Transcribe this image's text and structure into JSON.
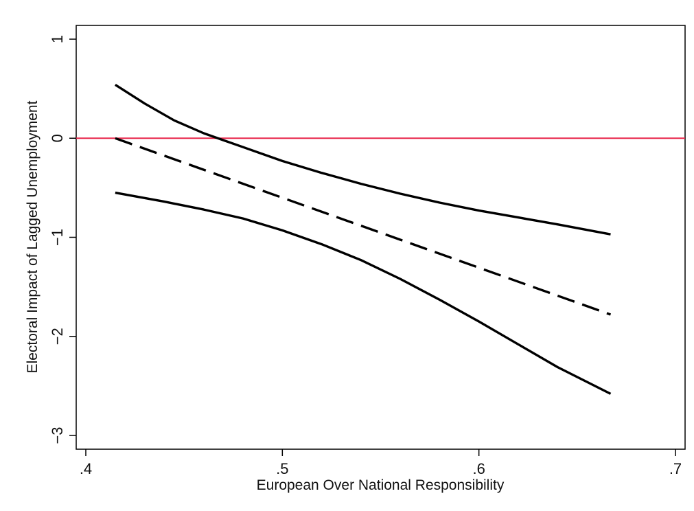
{
  "chart_data": {
    "type": "line",
    "title": "",
    "xlabel": "European Over National  Responsibility",
    "ylabel": "Electoral Impact of Lagged Unemployment",
    "xlim": [
      0.4,
      0.7
    ],
    "ylim": [
      -3,
      1
    ],
    "xticks": [
      0.4,
      0.5,
      0.6,
      0.7
    ],
    "xtick_labels": [
      ".4",
      ".5",
      ".6",
      ".7"
    ],
    "yticks": [
      -3,
      -2,
      -1,
      0,
      1
    ],
    "ytick_labels": [
      "−3",
      "−2",
      "−1",
      "0",
      "1"
    ],
    "grid": false,
    "legend": "none",
    "reference_line": {
      "y": 0,
      "color": "#e8274b"
    },
    "series": [
      {
        "style": "dashed",
        "color": "#000000",
        "x": [
          0.415,
          0.667
        ],
        "y": [
          0.0,
          -1.78
        ]
      },
      {
        "style": "solid",
        "color": "#000000",
        "x": [
          0.415,
          0.43,
          0.445,
          0.46,
          0.47,
          0.48,
          0.5,
          0.52,
          0.54,
          0.56,
          0.58,
          0.6,
          0.62,
          0.64,
          0.667
        ],
        "y": [
          0.54,
          0.35,
          0.18,
          0.05,
          -0.02,
          -0.09,
          -0.23,
          -0.35,
          -0.46,
          -0.56,
          -0.65,
          -0.73,
          -0.8,
          -0.87,
          -0.97
        ]
      },
      {
        "style": "solid",
        "color": "#000000",
        "x": [
          0.415,
          0.44,
          0.46,
          0.48,
          0.5,
          0.52,
          0.54,
          0.56,
          0.58,
          0.6,
          0.62,
          0.64,
          0.667
        ],
        "y": [
          -0.55,
          -0.64,
          -0.72,
          -0.81,
          -0.93,
          -1.07,
          -1.23,
          -1.42,
          -1.63,
          -1.85,
          -2.08,
          -2.31,
          -2.58
        ]
      }
    ]
  }
}
